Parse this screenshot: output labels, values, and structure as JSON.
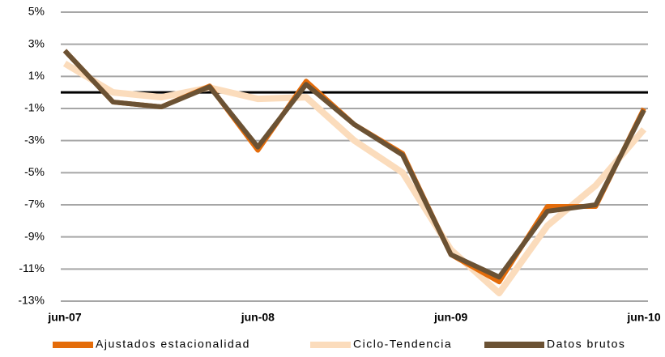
{
  "chart_data": {
    "type": "line",
    "categories": [
      "jun-07",
      null,
      null,
      null,
      "jun-08",
      null,
      null,
      null,
      "jun-09",
      null,
      null,
      null,
      "jun-10"
    ],
    "series": [
      {
        "name": "Ciclo-Tendencia",
        "color": "#fbdcbc",
        "values": [
          1.8,
          0.0,
          -0.3,
          0.3,
          -0.4,
          -0.3,
          -3.0,
          -5.0,
          -9.8,
          -12.5,
          -8.3,
          -5.8,
          -2.3
        ]
      },
      {
        "name": "Ajustados estacionalidad",
        "color": "#e46c0a",
        "values": [
          2.6,
          -0.6,
          -0.9,
          0.4,
          -3.6,
          0.7,
          -2.0,
          -3.8,
          -10.1,
          -11.8,
          -7.1,
          -7.1,
          -1.0
        ]
      },
      {
        "name": "Datos brutos",
        "color": "#6b5234",
        "values": [
          2.6,
          -0.6,
          -0.9,
          0.35,
          -3.4,
          0.5,
          -2.0,
          -3.9,
          -10.1,
          -11.5,
          -7.4,
          -7.0,
          -1.1
        ]
      }
    ],
    "legend_order": [
      1,
      0,
      2
    ],
    "ylim": [
      -13,
      5
    ],
    "yticks": [
      {
        "value": 5,
        "label": "5%"
      },
      {
        "value": 3,
        "label": "3%"
      },
      {
        "value": 1,
        "label": "1%"
      },
      {
        "value": -1,
        "label": "-1%"
      },
      {
        "value": -3,
        "label": "-3%"
      },
      {
        "value": -5,
        "label": "-5%"
      },
      {
        "value": -7,
        "label": "-7%"
      },
      {
        "value": -9,
        "label": "-9%"
      },
      {
        "value": -11,
        "label": "-11%"
      },
      {
        "value": -13,
        "label": "-13%"
      }
    ],
    "grid": true,
    "zero_line": true,
    "legend": "bottom"
  }
}
